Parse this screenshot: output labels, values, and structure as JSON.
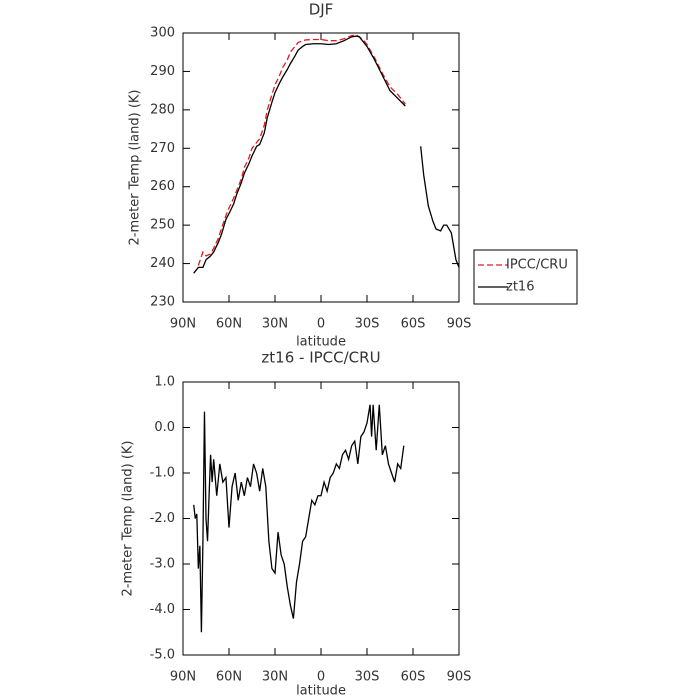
{
  "chart_data": [
    {
      "type": "line",
      "title": "DJF",
      "xlabel": "latitude",
      "ylabel": "2-meter Temp (land) (K)",
      "xlim": [
        90,
        -90
      ],
      "xticks": [
        {
          "value": 90,
          "label": "90N"
        },
        {
          "value": 60,
          "label": "60N"
        },
        {
          "value": 30,
          "label": "30N"
        },
        0,
        {
          "value": -30,
          "label": "30S"
        },
        {
          "value": -60,
          "label": "60S"
        },
        {
          "value": -90,
          "label": "90S"
        }
      ],
      "ylim": [
        230,
        300
      ],
      "yticks": [
        230,
        240,
        250,
        260,
        270,
        280,
        290,
        300
      ],
      "legend": "right",
      "x": [
        83,
        80,
        77,
        75,
        72,
        70,
        67,
        65,
        62,
        60,
        57,
        55,
        52,
        50,
        47,
        45,
        42,
        40,
        37,
        35,
        32,
        30,
        27,
        25,
        22,
        20,
        17,
        15,
        12,
        10,
        5,
        0,
        -5,
        -10,
        -15,
        -20,
        -23,
        -25,
        -28,
        -30,
        -35,
        -40,
        -45,
        -50,
        -55,
        -60,
        -65,
        -67,
        -70,
        -73,
        -75,
        -78,
        -80,
        -82,
        -85,
        -88,
        -90
      ],
      "series": [
        {
          "name": "IPCC/CRU",
          "color": "#e41a1c",
          "dashed": true,
          "values": [
            null,
            239.5,
            243,
            242,
            242.5,
            244,
            246.5,
            249,
            252.5,
            254.5,
            257,
            259,
            262,
            265,
            267.5,
            270,
            271.5,
            272.5,
            276,
            280,
            284,
            286.5,
            289,
            291,
            293,
            295,
            296.5,
            297.5,
            298,
            298.2,
            298.3,
            298.3,
            298,
            298,
            298.5,
            299.3,
            299.5,
            299,
            298,
            297,
            293.5,
            289.5,
            286,
            284,
            281.5,
            null,
            null,
            null,
            null,
            null,
            null,
            null,
            null,
            null,
            null,
            null,
            null
          ]
        },
        {
          "name": "zt16",
          "color": "#000000",
          "dashed": false,
          "values": [
            237.5,
            239,
            239,
            241,
            242,
            243,
            245.5,
            247.5,
            251.5,
            253,
            255.5,
            258,
            261,
            263.5,
            266,
            268,
            270.5,
            271,
            274,
            278,
            282,
            284.5,
            287,
            288.5,
            290.5,
            292,
            294,
            295.5,
            296.5,
            297,
            297.2,
            297.2,
            297,
            297.2,
            298,
            299,
            299.2,
            299,
            297.5,
            296.5,
            293,
            289,
            285,
            283,
            281,
            null,
            270.5,
            263,
            255,
            251,
            249,
            248.5,
            250,
            250,
            248,
            241,
            239
          ]
        }
      ]
    },
    {
      "type": "line",
      "title": "zt16 - IPCC/CRU",
      "xlabel": "latitude",
      "ylabel": "2-meter Temp (land) (K)",
      "xlim": [
        90,
        -90
      ],
      "xticks": [
        {
          "value": 90,
          "label": "90N"
        },
        {
          "value": 60,
          "label": "60N"
        },
        {
          "value": 30,
          "label": "30N"
        },
        0,
        {
          "value": -30,
          "label": "30S"
        },
        {
          "value": -60,
          "label": "60S"
        },
        {
          "value": -90,
          "label": "90S"
        }
      ],
      "ylim": [
        -5,
        1
      ],
      "yticks": [
        {
          "value": -5,
          "label": "-5.0"
        },
        {
          "value": -4,
          "label": "-4.0"
        },
        {
          "value": -3,
          "label": "-3.0"
        },
        {
          "value": -2,
          "label": "-2.0"
        },
        {
          "value": -1,
          "label": "-1.0"
        },
        {
          "value": 0,
          "label": "0.0"
        },
        {
          "value": 1,
          "label": "1.0"
        }
      ],
      "color": "#000000",
      "x": [
        83,
        82,
        81,
        80,
        79,
        78,
        77,
        76,
        75,
        74,
        73,
        72,
        71,
        70,
        68,
        66,
        64,
        62,
        60,
        58,
        56,
        54,
        52,
        50,
        48,
        46,
        44,
        42,
        40,
        38,
        36,
        34,
        32,
        30,
        28,
        26,
        24,
        22,
        20,
        18,
        16,
        14,
        12,
        10,
        8,
        6,
        4,
        2,
        0,
        -2,
        -4,
        -6,
        -8,
        -10,
        -12,
        -14,
        -16,
        -18,
        -20,
        -22,
        -24,
        -26,
        -28,
        -30,
        -32,
        -33,
        -34,
        -36,
        -38,
        -40,
        -42,
        -44,
        -46,
        -48,
        -50,
        -52,
        -54
      ],
      "values": [
        -1.7,
        -2.0,
        -1.9,
        -3.1,
        -2.6,
        -4.5,
        -2.5,
        0.35,
        -2.0,
        -2.5,
        -1.5,
        -0.6,
        -1.2,
        -0.7,
        -1.5,
        -0.8,
        -1.2,
        -1.1,
        -2.2,
        -1.3,
        -1.0,
        -1.6,
        -1.2,
        -1.5,
        -1.1,
        -1.3,
        -0.8,
        -1.0,
        -1.4,
        -0.9,
        -1.3,
        -2.5,
        -3.1,
        -3.2,
        -2.3,
        -2.8,
        -3.0,
        -3.5,
        -3.9,
        -4.2,
        -3.4,
        -3.0,
        -2.5,
        -2.4,
        -2.0,
        -1.6,
        -1.7,
        -1.5,
        -1.5,
        -1.2,
        -1.4,
        -1.1,
        -1.0,
        -0.8,
        -0.9,
        -0.6,
        -0.5,
        -0.7,
        -0.4,
        -0.3,
        -0.8,
        -0.2,
        -0.1,
        0.1,
        0.5,
        -0.2,
        0.5,
        -0.5,
        0.5,
        -0.6,
        -0.4,
        -0.8,
        -1.0,
        -1.2,
        -0.8,
        -0.9,
        -0.4
      ]
    }
  ]
}
